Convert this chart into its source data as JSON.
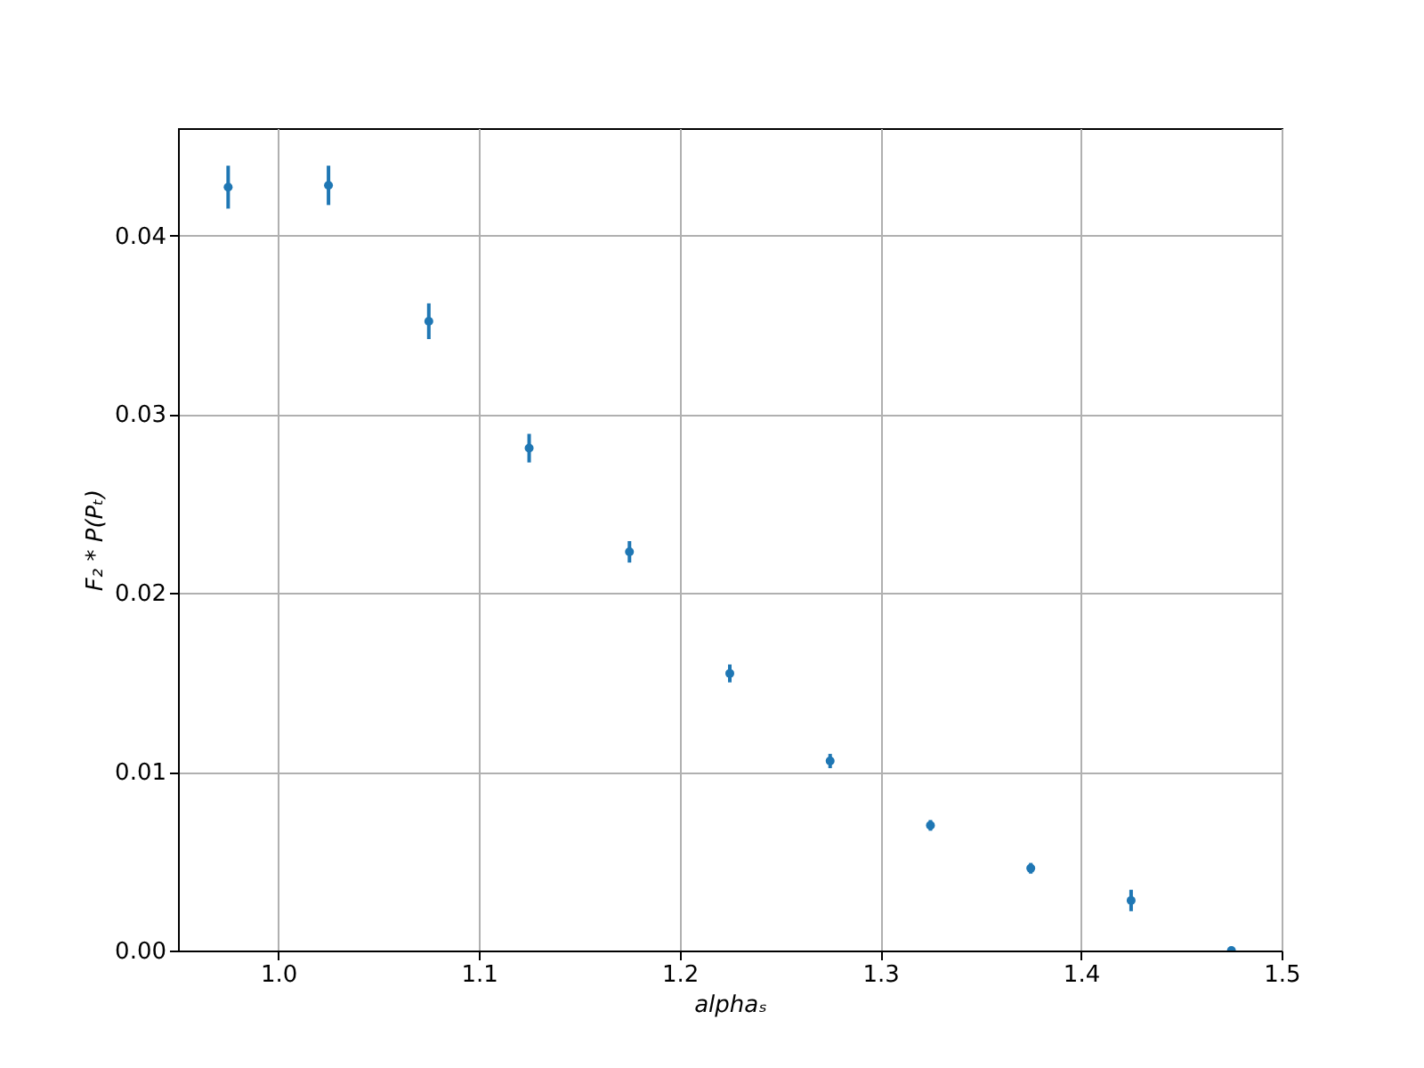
{
  "chart_data": {
    "type": "scatter",
    "xlabel": "alphaₛ",
    "ylabel": "F₂ * P(Pₜ)",
    "x": [
      0.975,
      1.025,
      1.075,
      1.125,
      1.175,
      1.225,
      1.275,
      1.325,
      1.375,
      1.425,
      1.475
    ],
    "series": [
      {
        "color": "#1f77b4",
        "values": [
          0.0427,
          0.0428,
          0.0352,
          0.0281,
          0.0223,
          0.0155,
          0.0106,
          0.007,
          0.0046,
          0.0028,
          0.0
        ],
        "errors": [
          0.0012,
          0.0011,
          0.001,
          0.0008,
          0.0006,
          0.0005,
          0.0004,
          0.0003,
          0.0003,
          0.0006,
          0.0002
        ]
      }
    ],
    "xlim": [
      0.95,
      1.5
    ],
    "xticks": [
      {
        "value": 1.0,
        "label": "1.0"
      },
      1.1,
      1.2,
      1.3,
      1.4,
      1.5
    ],
    "ylim": [
      0,
      0.046
    ],
    "yticks": [
      {
        "value": 0,
        "label": "0.00"
      },
      {
        "value": 0.01,
        "label": "0.01"
      },
      {
        "value": 0.02,
        "label": "0.02"
      },
      {
        "value": 0.03,
        "label": "0.03"
      },
      {
        "value": 0.04,
        "label": "0.04"
      }
    ],
    "grid": true,
    "marker": "circle"
  }
}
